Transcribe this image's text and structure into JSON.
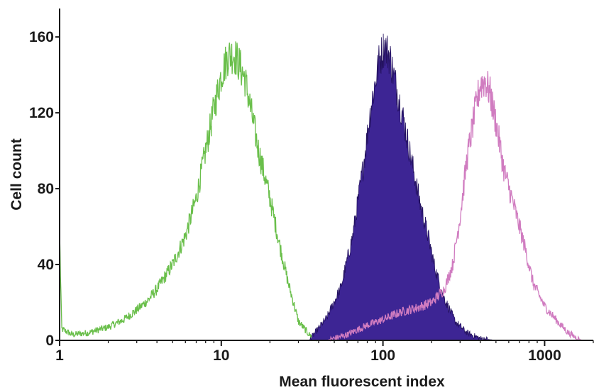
{
  "chart_data": {
    "type": "area",
    "xscale": "log",
    "xlim": [
      1,
      2000
    ],
    "ylim": [
      0,
      175
    ],
    "xlabel": "Mean fluorescent index",
    "ylabel": "Cell count",
    "xticks": [
      {
        "value": 1,
        "label": "1"
      },
      {
        "value": 10,
        "label": "10"
      },
      {
        "value": 100,
        "label": "100"
      },
      {
        "value": 1000,
        "label": "1000"
      }
    ],
    "yticks": [
      {
        "value": 0,
        "label": "0"
      },
      {
        "value": 40,
        "label": "40"
      },
      {
        "value": 80,
        "label": "80"
      },
      {
        "value": 120,
        "label": "120"
      },
      {
        "value": 160,
        "label": "160"
      }
    ],
    "grid": false,
    "legend": "none",
    "series": [
      {
        "color": "#6abf4b",
        "fill": false,
        "points": [
          [
            1.0,
            57
          ],
          [
            1.03,
            6
          ],
          [
            1.2,
            3
          ],
          [
            1.5,
            4
          ],
          [
            2.0,
            7
          ],
          [
            2.5,
            11
          ],
          [
            3.0,
            16
          ],
          [
            3.5,
            21
          ],
          [
            4.0,
            27
          ],
          [
            5.0,
            40
          ],
          [
            6.0,
            55
          ],
          [
            7.0,
            75
          ],
          [
            8.0,
            100
          ],
          [
            9.0,
            122
          ],
          [
            10.0,
            140
          ],
          [
            11.0,
            150
          ],
          [
            12.0,
            151
          ],
          [
            13.0,
            145
          ],
          [
            14.0,
            138
          ],
          [
            15.0,
            125
          ],
          [
            17.0,
            100
          ],
          [
            20.0,
            75
          ],
          [
            23.0,
            50
          ],
          [
            26.0,
            30
          ],
          [
            30.0,
            10
          ],
          [
            35.0,
            3
          ],
          [
            40.0,
            0
          ]
        ]
      },
      {
        "color": "#3d2594",
        "fill": true,
        "points": [
          [
            35.0,
            0
          ],
          [
            45.0,
            12
          ],
          [
            55.0,
            28
          ],
          [
            65.0,
            55
          ],
          [
            75.0,
            90
          ],
          [
            85.0,
            125
          ],
          [
            95.0,
            148
          ],
          [
            102.0,
            155
          ],
          [
            110.0,
            150
          ],
          [
            120.0,
            135
          ],
          [
            135.0,
            115
          ],
          [
            150.0,
            95
          ],
          [
            170.0,
            72
          ],
          [
            190.0,
            55
          ],
          [
            210.0,
            38
          ],
          [
            240.0,
            22
          ],
          [
            280.0,
            10
          ],
          [
            330.0,
            4
          ],
          [
            400.0,
            1
          ],
          [
            500.0,
            0
          ]
        ]
      },
      {
        "color": "#d07cc0",
        "fill": false,
        "points": [
          [
            45.0,
            0
          ],
          [
            60.0,
            3
          ],
          [
            80.0,
            8
          ],
          [
            100.0,
            11
          ],
          [
            130.0,
            15
          ],
          [
            160.0,
            17
          ],
          [
            200.0,
            20
          ],
          [
            240.0,
            27
          ],
          [
            270.0,
            40
          ],
          [
            300.0,
            65
          ],
          [
            330.0,
            95
          ],
          [
            370.0,
            120
          ],
          [
            400.0,
            135
          ],
          [
            430.0,
            137
          ],
          [
            460.0,
            130
          ],
          [
            500.0,
            115
          ],
          [
            560.0,
            90
          ],
          [
            650.0,
            70
          ],
          [
            750.0,
            50
          ],
          [
            850.0,
            30
          ],
          [
            1000.0,
            18
          ],
          [
            1200.0,
            10
          ],
          [
            1400.0,
            4
          ],
          [
            1600.0,
            1
          ],
          [
            1700.0,
            0
          ]
        ]
      }
    ]
  },
  "colors": {
    "axis": "#1a1a1a",
    "background": "#ffffff"
  }
}
